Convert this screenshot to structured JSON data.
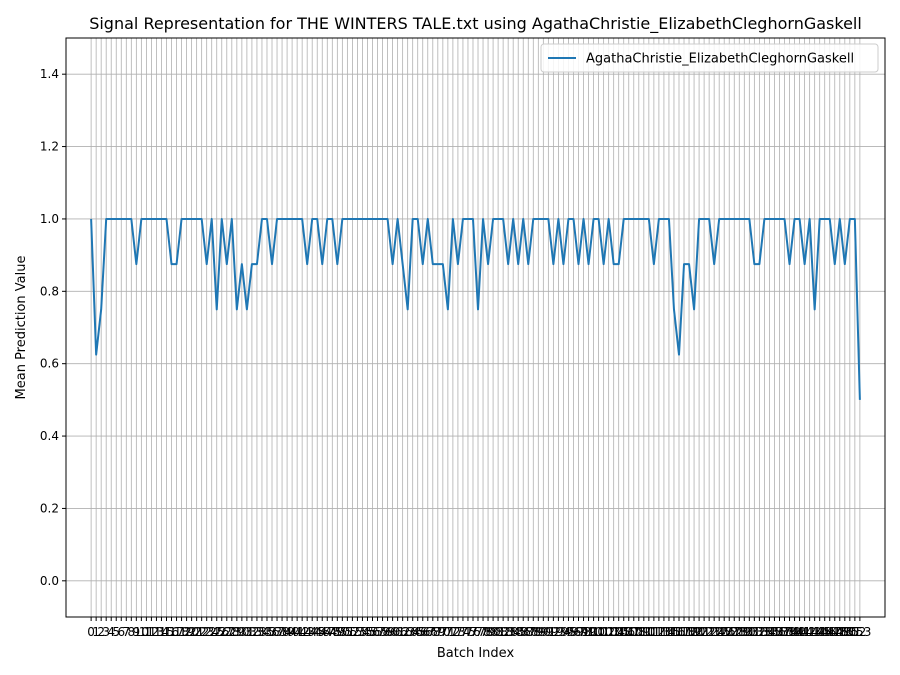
{
  "chart_data": {
    "type": "line",
    "title": "Signal Representation for THE WINTERS TALE.txt using AgathaChristie_ElizabethCleghornGaskell",
    "xlabel": "Batch Index",
    "ylabel": "Mean Prediction Value",
    "xlim": [
      -5,
      158
    ],
    "ylim": [
      -0.1,
      1.5
    ],
    "yticks": [
      0.0,
      0.2,
      0.4,
      0.6,
      0.8,
      1.0,
      1.2,
      1.4
    ],
    "ytick_labels": [
      "0.0",
      "0.2",
      "0.4",
      "0.6",
      "0.8",
      "1.0",
      "1.2",
      "1.4"
    ],
    "x_ticks_count": 154,
    "grid": true,
    "legend_position": "top-right",
    "series": [
      {
        "name": "AgathaChristie_ElizabethCleghornGaskell",
        "color": "#1f77b4",
        "values": [
          1.0,
          0.625,
          0.75,
          1.0,
          1.0,
          1.0,
          1.0,
          1.0,
          1.0,
          0.875,
          1.0,
          1.0,
          1.0,
          1.0,
          1.0,
          1.0,
          0.875,
          0.875,
          1.0,
          1.0,
          1.0,
          1.0,
          1.0,
          0.875,
          1.0,
          0.75,
          1.0,
          0.875,
          1.0,
          0.75,
          0.875,
          0.75,
          0.875,
          0.875,
          1.0,
          1.0,
          0.875,
          1.0,
          1.0,
          1.0,
          1.0,
          1.0,
          1.0,
          0.875,
          1.0,
          1.0,
          0.875,
          1.0,
          1.0,
          0.875,
          1.0,
          1.0,
          1.0,
          1.0,
          1.0,
          1.0,
          1.0,
          1.0,
          1.0,
          1.0,
          0.875,
          1.0,
          0.875,
          0.75,
          1.0,
          1.0,
          0.875,
          1.0,
          0.875,
          0.875,
          0.875,
          0.75,
          1.0,
          0.875,
          1.0,
          1.0,
          1.0,
          0.75,
          1.0,
          0.875,
          1.0,
          1.0,
          1.0,
          0.875,
          1.0,
          0.875,
          1.0,
          0.875,
          1.0,
          1.0,
          1.0,
          1.0,
          0.875,
          1.0,
          0.875,
          1.0,
          1.0,
          0.875,
          1.0,
          0.875,
          1.0,
          1.0,
          0.875,
          1.0,
          0.875,
          0.875,
          1.0,
          1.0,
          1.0,
          1.0,
          1.0,
          1.0,
          0.875,
          1.0,
          1.0,
          1.0,
          0.75,
          0.625,
          0.875,
          0.875,
          0.75,
          1.0,
          1.0,
          1.0,
          0.875,
          1.0,
          1.0,
          1.0,
          1.0,
          1.0,
          1.0,
          1.0,
          0.875,
          0.875,
          1.0,
          1.0,
          1.0,
          1.0,
          1.0,
          0.875,
          1.0,
          1.0,
          0.875,
          1.0,
          0.75,
          1.0,
          1.0,
          1.0,
          0.875,
          1.0,
          0.875,
          1.0,
          1.0,
          0.5
        ]
      }
    ]
  }
}
